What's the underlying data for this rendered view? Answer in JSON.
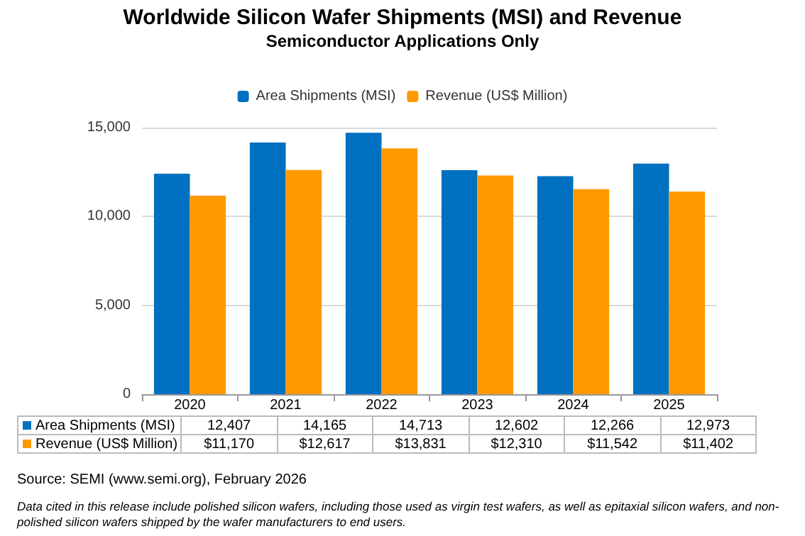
{
  "chart_data": {
    "type": "bar",
    "title": "Worldwide Silicon Wafer Shipments (MSI) and Revenue",
    "subtitle": "Semiconductor Applications Only",
    "categories": [
      "2020",
      "2021",
      "2022",
      "2023",
      "2024",
      "2025"
    ],
    "series": [
      {
        "name": "Area Shipments (MSI)",
        "color": "#0070c0",
        "values": [
          12407,
          14165,
          14713,
          12602,
          12266,
          12973
        ],
        "value_labels": [
          "12,407",
          "14,165",
          "14,713",
          "12,602",
          "12,266",
          "12,973"
        ]
      },
      {
        "name": "Revenue (US$ Million)",
        "color": "#ff9900",
        "values": [
          11170,
          12617,
          13831,
          12310,
          11542,
          11402
        ],
        "value_labels": [
          "$11,170",
          "$12,617",
          "$13,831",
          "$12,310",
          "$11,542",
          "$11,402"
        ]
      }
    ],
    "ylim": [
      0,
      15000
    ],
    "yticks": [
      0,
      {
        "value": 5000,
        "label": "5,000"
      },
      {
        "value": 10000,
        "label": "10,000"
      },
      {
        "value": 15000,
        "label": "15,000"
      }
    ],
    "grid": "y",
    "legend": "top",
    "annotations": [
      "Source: SEMI (www.semi.org), February 2026",
      "Data cited in this release include polished silicon wafers, including those used as virgin test wafers, as well as epitaxial silicon wafers, and non-polished silicon wafers shipped by the wafer manufacturers to end users."
    ]
  }
}
